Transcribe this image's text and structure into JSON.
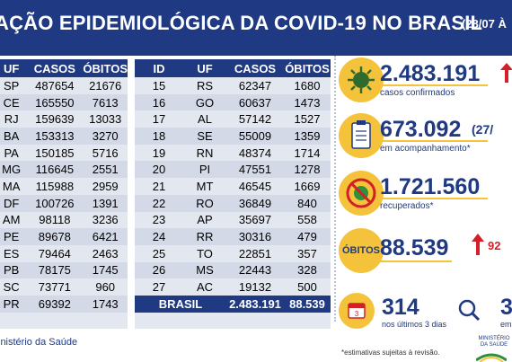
{
  "header": {
    "title": "AÇÃO EPIDEMIOLÓGICA DA COVID-19 NO BRASIL",
    "date": "(28/07 À"
  },
  "left_table": {
    "columns": [
      "UF",
      "CASOS",
      "ÓBITOS"
    ],
    "rows": [
      [
        "SP",
        "487654",
        "21676"
      ],
      [
        "CE",
        "165550",
        "7613"
      ],
      [
        "RJ",
        "159639",
        "13033"
      ],
      [
        "BA",
        "153313",
        "3270"
      ],
      [
        "PA",
        "150185",
        "5716"
      ],
      [
        "MG",
        "116645",
        "2551"
      ],
      [
        "MA",
        "115988",
        "2959"
      ],
      [
        "DF",
        "100726",
        "1391"
      ],
      [
        "AM",
        "98118",
        "3236"
      ],
      [
        "PE",
        "89678",
        "6421"
      ],
      [
        "ES",
        "79464",
        "2463"
      ],
      [
        "PB",
        "78175",
        "1745"
      ],
      [
        "SC",
        "73771",
        "960"
      ],
      [
        "PR",
        "69392",
        "1743"
      ]
    ]
  },
  "right_table": {
    "columns": [
      "ID",
      "UF",
      "CASOS",
      "ÓBITOS"
    ],
    "rows": [
      [
        "15",
        "RS",
        "62347",
        "1680"
      ],
      [
        "16",
        "GO",
        "60637",
        "1473"
      ],
      [
        "17",
        "AL",
        "57142",
        "1527"
      ],
      [
        "18",
        "SE",
        "55009",
        "1359"
      ],
      [
        "19",
        "RN",
        "48374",
        "1714"
      ],
      [
        "20",
        "PI",
        "47551",
        "1278"
      ],
      [
        "21",
        "MT",
        "46545",
        "1669"
      ],
      [
        "22",
        "RO",
        "36849",
        "840"
      ],
      [
        "23",
        "AP",
        "35697",
        "558"
      ],
      [
        "24",
        "RR",
        "30316",
        "479"
      ],
      [
        "25",
        "TO",
        "22851",
        "357"
      ],
      [
        "26",
        "MS",
        "22443",
        "328"
      ],
      [
        "27",
        "AC",
        "19132",
        "500"
      ]
    ],
    "total": {
      "label": "BRASIL",
      "cases": "2.483.191",
      "deaths": "88.539"
    }
  },
  "stats": {
    "confirmed": {
      "value": "2.483.191",
      "label": "casos confirmados"
    },
    "monitoring": {
      "value": "673.092",
      "extra": "(27/",
      "label": "em acompanhamento*"
    },
    "recovered": {
      "value": "1.721.560",
      "label": "recuperados*"
    },
    "deaths": {
      "badge": "ÓBITOS",
      "value": "88.539",
      "increase": "92"
    },
    "recent": {
      "value": "314",
      "label": "nos últimos 3 dias",
      "calendar": "3"
    },
    "investigation": {
      "value": "3",
      "label": "em"
    }
  },
  "footer": {
    "source": "inistério da Saúde",
    "note": "*estimativas sujeitas à revisão.",
    "logo": "MINISTÉRIO DA SAÚDE"
  },
  "colors": {
    "navy": "#1f3a83",
    "yellow": "#f5c33b",
    "red": "#d32027",
    "green": "#2f8f3a"
  }
}
